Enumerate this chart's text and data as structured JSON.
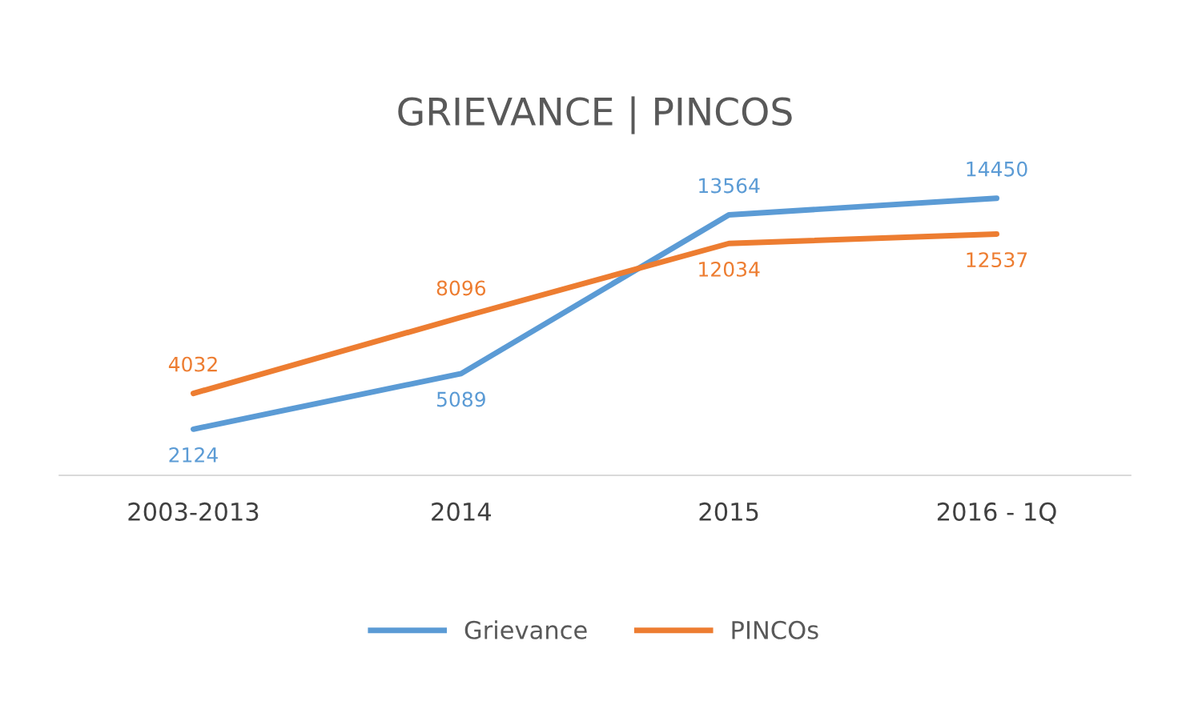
{
  "chart_data": {
    "type": "line",
    "title": "GRIEVANCE | PINCOS",
    "categories": [
      "2003-2013",
      "2014",
      "2015",
      "2016 - 1Q"
    ],
    "series": [
      {
        "name": "Grievance",
        "color": "#5b9bd5",
        "values": [
          2124,
          5089,
          13564,
          14450
        ]
      },
      {
        "name": "PINCOs",
        "color": "#ed7d31",
        "values": [
          4032,
          8096,
          12034,
          12537
        ]
      }
    ],
    "tick_labels": "x",
    "data_labels": true,
    "legend": "bottom",
    "grid": false,
    "marker": "none",
    "line_style": "solid"
  }
}
